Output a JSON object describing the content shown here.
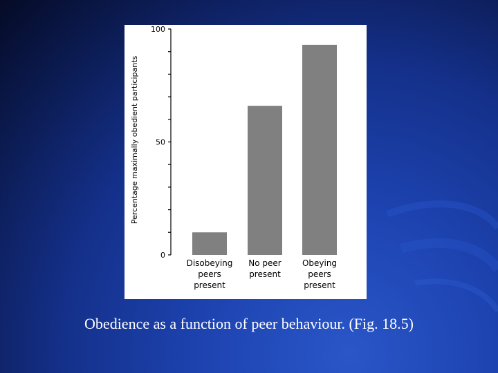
{
  "slide": {
    "caption": "Obedience as a function of peer behaviour. (Fig. 18.5)"
  },
  "chart_data": {
    "type": "bar",
    "title": "",
    "xlabel": "",
    "ylabel": "Percentage maximally obedient participants",
    "ylim": [
      0,
      100
    ],
    "yticks": [
      0,
      50,
      100
    ],
    "categories": [
      [
        "Disobeying",
        "peers",
        "present"
      ],
      [
        "No peer",
        "present"
      ],
      [
        "Obeying",
        "peers",
        "present"
      ]
    ],
    "values": [
      10,
      66,
      93
    ],
    "bar_color": "#808080",
    "grid": false,
    "legend": "none"
  }
}
